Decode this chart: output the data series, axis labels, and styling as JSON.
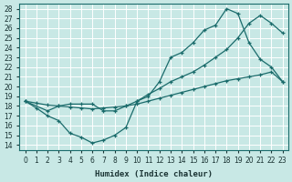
{
  "title": "",
  "xlabel": "Humidex (Indice chaleur)",
  "ylabel": "",
  "bg_color": "#c8e8e5",
  "grid_color": "#ffffff",
  "line_color": "#1a6b6b",
  "xlim": [
    -0.5,
    23.5
  ],
  "ylim": [
    13.5,
    28.5
  ],
  "xticks": [
    0,
    1,
    2,
    3,
    4,
    5,
    6,
    7,
    8,
    9,
    10,
    11,
    12,
    13,
    14,
    15,
    16,
    17,
    18,
    19,
    20,
    21,
    22,
    23
  ],
  "yticks": [
    14,
    15,
    16,
    17,
    18,
    19,
    20,
    21,
    22,
    23,
    24,
    25,
    26,
    27,
    28
  ],
  "line1_x": [
    0,
    1,
    2,
    3,
    4,
    5,
    6,
    7,
    8,
    9,
    10,
    11,
    12,
    13,
    14,
    15,
    16,
    17,
    18,
    19,
    20,
    21,
    22,
    23
  ],
  "line1_y": [
    18.5,
    17.8,
    17.0,
    16.5,
    15.2,
    14.8,
    14.2,
    14.5,
    15.0,
    15.8,
    18.5,
    19.0,
    20.5,
    23.0,
    23.5,
    24.5,
    25.8,
    26.3,
    28.0,
    27.5,
    24.5,
    22.8,
    22.0,
    20.5
  ],
  "line2_x": [
    0,
    2,
    3,
    4,
    5,
    6,
    7,
    8,
    9,
    10,
    11,
    12,
    13,
    14,
    15,
    16,
    17,
    18,
    19,
    20,
    21,
    22,
    23
  ],
  "line2_y": [
    18.5,
    17.5,
    18.0,
    18.2,
    18.2,
    18.2,
    17.5,
    17.5,
    18.0,
    18.5,
    19.2,
    19.8,
    20.5,
    21.0,
    21.5,
    22.2,
    23.0,
    23.8,
    25.0,
    26.5,
    27.3,
    26.5,
    25.5
  ],
  "line3_x": [
    0,
    1,
    2,
    3,
    4,
    5,
    6,
    7,
    8,
    9,
    10,
    11,
    12,
    13,
    14,
    15,
    16,
    17,
    18,
    19,
    20,
    21,
    22,
    23
  ],
  "line3_y": [
    18.5,
    18.3,
    18.1,
    18.0,
    17.9,
    17.8,
    17.7,
    17.8,
    17.9,
    18.0,
    18.2,
    18.5,
    18.8,
    19.1,
    19.4,
    19.7,
    20.0,
    20.3,
    20.6,
    20.8,
    21.0,
    21.2,
    21.5,
    20.5
  ]
}
